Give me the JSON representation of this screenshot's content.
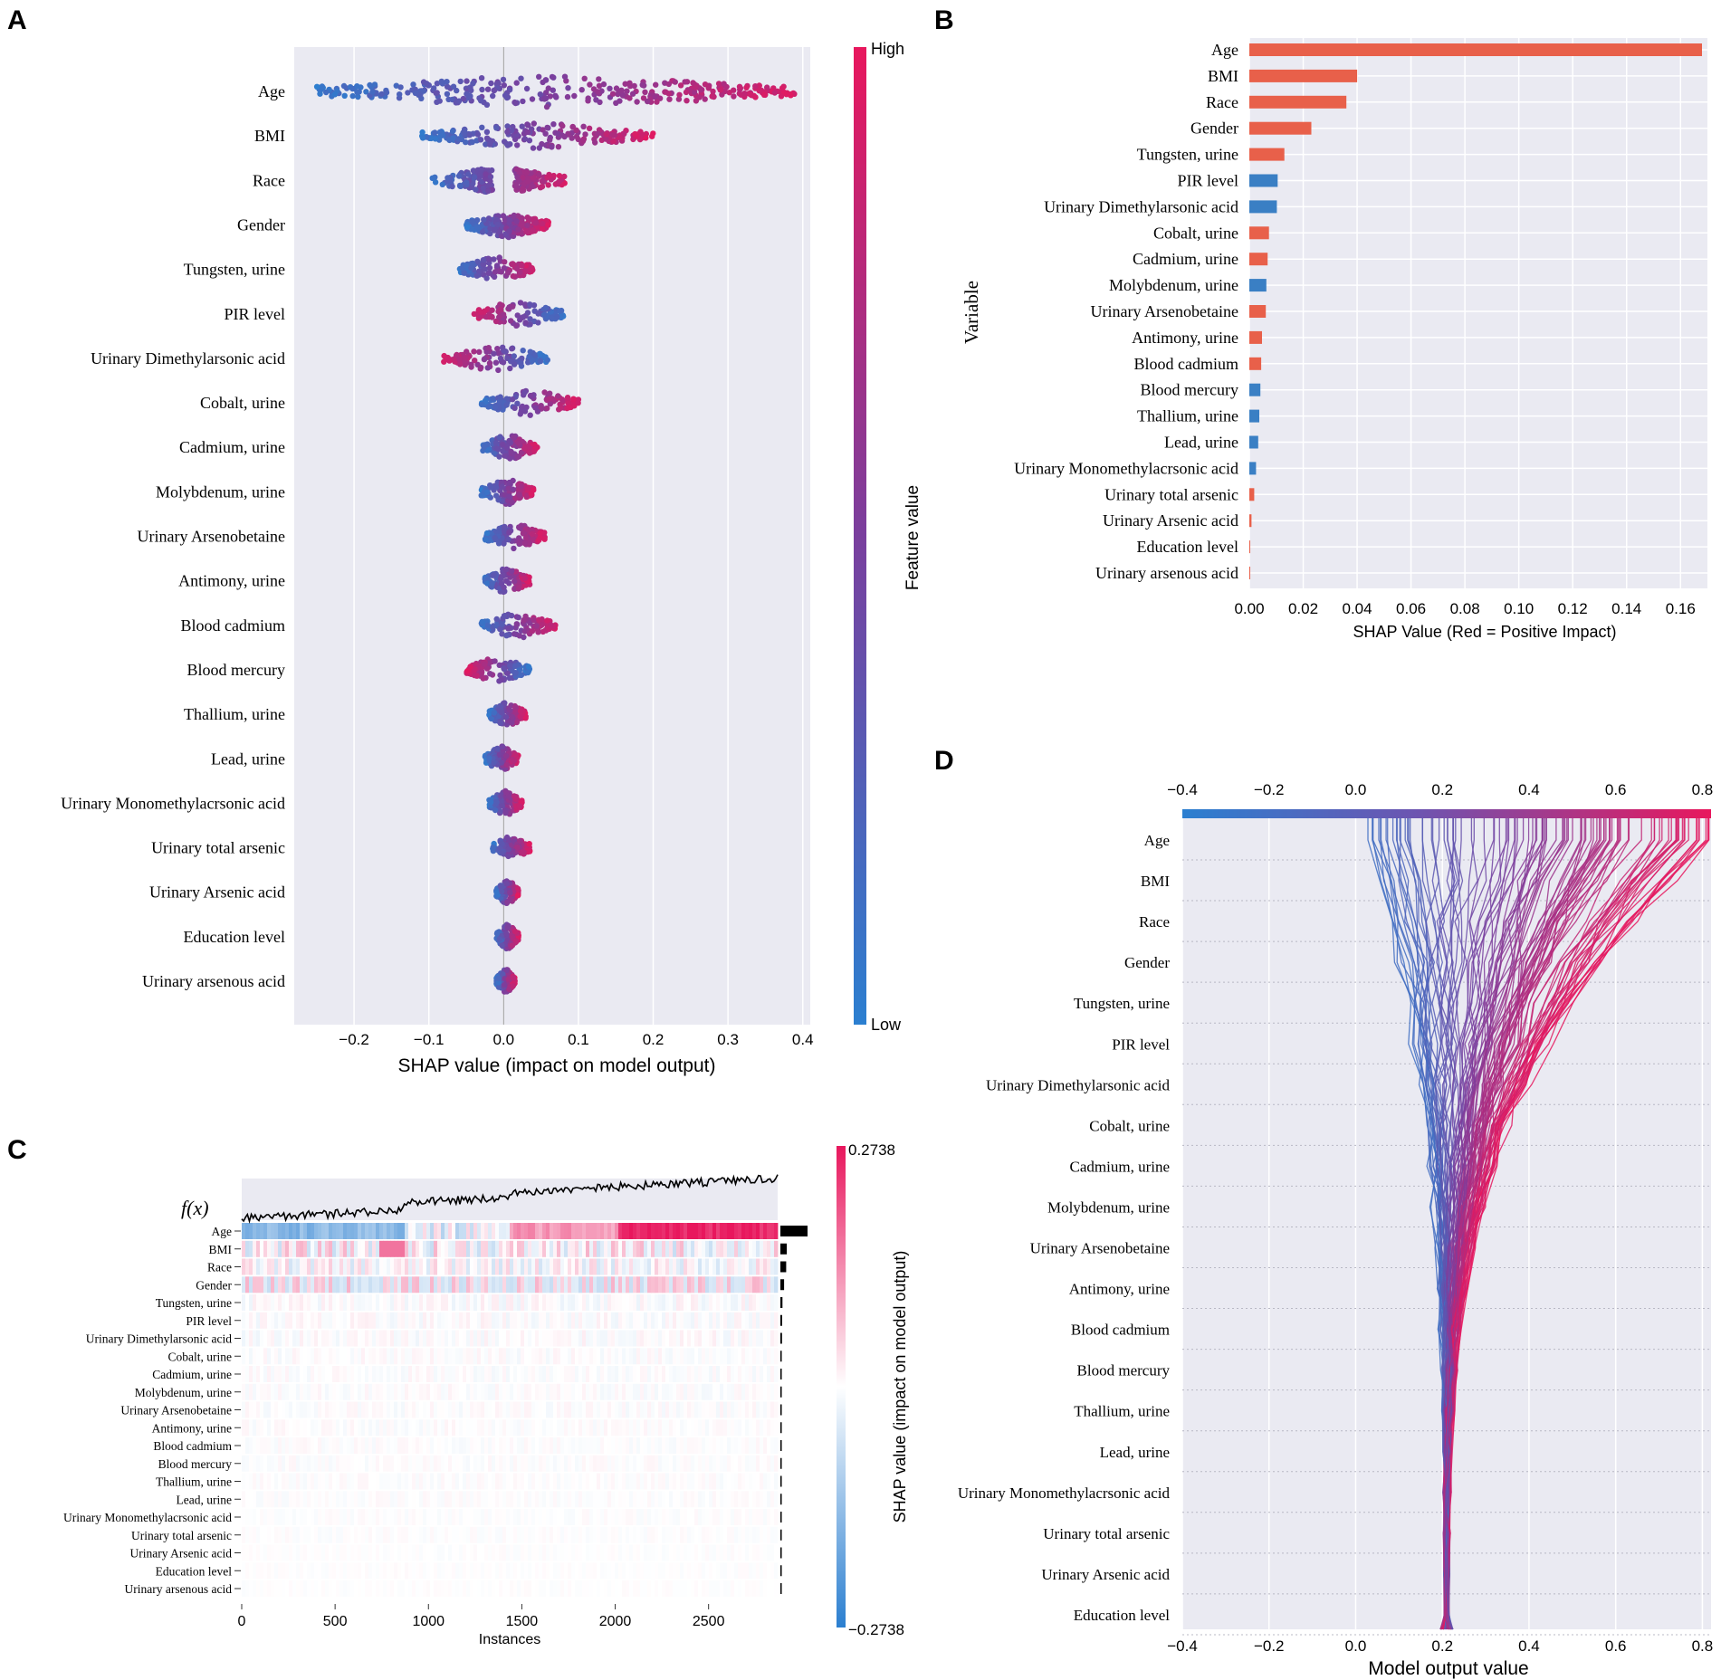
{
  "panels": {
    "a": "A",
    "b": "B",
    "c": "C",
    "d": "D"
  },
  "features": [
    "Age",
    "BMI",
    "Race",
    "Gender",
    "Tungsten, urine",
    "PIR level",
    "Urinary Dimethylarsonic acid",
    "Cobalt, urine",
    "Cadmium, urine",
    "Molybdenum, urine",
    "Urinary Arsenobetaine",
    "Antimony, urine",
    "Blood cadmium",
    "Blood mercury",
    "Thallium, urine",
    "Lead, urine",
    "Urinary Monomethylacrsonic acid",
    "Urinary total arsenic",
    "Urinary Arsenic acid",
    "Education level",
    "Urinary arsenous acid"
  ],
  "colors": {
    "red": "#e8175d",
    "blue": "#2b7fd0",
    "purple": "#7a3f9e",
    "bar_red": "#e8604a",
    "bar_blue": "#3a7fc4",
    "grid_bg": "#eaeaf2"
  },
  "chart_data": [
    {
      "panel": "A",
      "type": "scatter",
      "xlabel": "SHAP value (impact on model output)",
      "xticks": [
        -0.2,
        -0.1,
        0.0,
        0.1,
        0.2,
        0.3,
        0.4
      ],
      "xlim": [
        -0.28,
        0.41
      ],
      "colorbar": {
        "label": "Feature value",
        "high": "High",
        "low": "Low"
      },
      "series": [
        {
          "name": "Age",
          "min": -0.25,
          "max": 0.39
        },
        {
          "name": "BMI",
          "min": -0.11,
          "max": 0.2
        },
        {
          "name": "Race",
          "min": -0.1,
          "max": 0.09
        },
        {
          "name": "Gender",
          "min": -0.05,
          "max": 0.06
        },
        {
          "name": "Tungsten, urine",
          "min": -0.06,
          "max": 0.04
        },
        {
          "name": "PIR level",
          "min": -0.04,
          "max": 0.08
        },
        {
          "name": "Urinary Dimethylarsonic acid",
          "min": -0.08,
          "max": 0.06
        },
        {
          "name": "Cobalt, urine",
          "min": -0.03,
          "max": 0.1
        },
        {
          "name": "Cadmium, urine",
          "min": -0.03,
          "max": 0.045
        },
        {
          "name": "Molybdenum, urine",
          "min": -0.03,
          "max": 0.04
        },
        {
          "name": "Urinary Arsenobetaine",
          "min": -0.025,
          "max": 0.055
        },
        {
          "name": "Antimony, urine",
          "min": -0.025,
          "max": 0.035
        },
        {
          "name": "Blood cadmium",
          "min": -0.03,
          "max": 0.07
        },
        {
          "name": "Blood mercury",
          "min": -0.05,
          "max": 0.035
        },
        {
          "name": "Thallium, urine",
          "min": -0.02,
          "max": 0.03
        },
        {
          "name": "Lead, urine",
          "min": -0.025,
          "max": 0.02
        },
        {
          "name": "Urinary Monomethylacrsonic acid",
          "min": -0.02,
          "max": 0.025
        },
        {
          "name": "Urinary total arsenic",
          "min": -0.015,
          "max": 0.035
        },
        {
          "name": "Urinary Arsenic acid",
          "min": -0.01,
          "max": 0.02
        },
        {
          "name": "Education level",
          "min": -0.01,
          "max": 0.02
        },
        {
          "name": "Urinary arsenous acid",
          "min": -0.01,
          "max": 0.015
        }
      ]
    },
    {
      "panel": "B",
      "type": "bar",
      "xlabel": "SHAP Value (Red = Positive Impact)",
      "ylabel": "Variable",
      "xticks": [
        "0.00",
        "0.02",
        "0.04",
        "0.06",
        "0.08",
        "0.10",
        "0.12",
        "0.14",
        "0.16"
      ],
      "xlim": [
        0,
        0.17
      ],
      "categories": [
        "Age",
        "BMI",
        "Race",
        "Gender",
        "Tungsten, urine",
        "PIR level",
        "Urinary Dimethylarsonic acid",
        "Cobalt, urine",
        "Cadmium, urine",
        "Molybdenum, urine",
        "Urinary Arsenobetaine",
        "Antimony, urine",
        "Blood cadmium",
        "Blood mercury",
        "Thallium, urine",
        "Lead, urine",
        "Urinary Monomethylacrsonic acid",
        "Urinary total arsenic",
        "Urinary Arsenic acid",
        "Education level",
        "Urinary arsenous acid"
      ],
      "values": [
        0.168,
        0.04,
        0.036,
        0.023,
        0.013,
        0.0105,
        0.0102,
        0.0073,
        0.0068,
        0.0063,
        0.0061,
        0.0047,
        0.0044,
        0.0041,
        0.0037,
        0.0033,
        0.0025,
        0.0018,
        0.0008,
        0.0003,
        0.0002
      ],
      "signs": [
        "pos",
        "pos",
        "pos",
        "pos",
        "pos",
        "neg",
        "neg",
        "pos",
        "pos",
        "neg",
        "pos",
        "pos",
        "pos",
        "neg",
        "neg",
        "neg",
        "neg",
        "pos",
        "pos",
        "pos",
        "pos"
      ]
    },
    {
      "panel": "C",
      "type": "heatmap",
      "top_label": "f(x)",
      "xlabel": "Instances",
      "xticks": [
        0,
        500,
        1000,
        1500,
        2000,
        2500
      ],
      "xlim": [
        0,
        2870
      ],
      "colorbar": {
        "label": "SHAP value (impact on model output)",
        "max": "0.2738",
        "min": "−0.2738"
      },
      "rows": [
        "Age",
        "BMI",
        "Race",
        "Gender",
        "Tungsten, urine",
        "PIR level",
        "Urinary Dimethylarsonic acid",
        "Cobalt, urine",
        "Cadmium, urine",
        "Molybdenum, urine",
        "Urinary Arsenobetaine",
        "Antimony, urine",
        "Blood cadmium",
        "Blood mercury",
        "Thallium, urine",
        "Lead, urine",
        "Urinary Monomethylacrsonic acid",
        "Urinary total arsenic",
        "Urinary Arsenic acid",
        "Education level",
        "Urinary arsenous acid"
      ],
      "importance": [
        0.168,
        0.04,
        0.036,
        0.023,
        0.013,
        0.0105,
        0.0102,
        0.0073,
        0.0068,
        0.0063,
        0.0061,
        0.0047,
        0.0044,
        0.0041,
        0.0037,
        0.0033,
        0.0025,
        0.0018,
        0.0008,
        0.0003,
        0.0002
      ]
    },
    {
      "panel": "D",
      "type": "line",
      "xlabel": "Model output value",
      "xticks": [
        "−0.4",
        "−0.2",
        "0.0",
        "0.2",
        "0.4",
        "0.6",
        "0.8"
      ],
      "xlim": [
        -0.4,
        0.82
      ],
      "base_value": 0.21,
      "rows": [
        "Age",
        "BMI",
        "Race",
        "Gender",
        "Tungsten, urine",
        "PIR level",
        "Urinary Dimethylarsonic acid",
        "Cobalt, urine",
        "Cadmium, urine",
        "Molybdenum, urine",
        "Urinary Arsenobetaine",
        "Antimony, urine",
        "Blood cadmium",
        "Blood mercury",
        "Thallium, urine",
        "Lead, urine",
        "Urinary Monomethylacrsonic acid",
        "Urinary total arsenic",
        "Urinary Arsenic acid",
        "Education level"
      ]
    }
  ]
}
